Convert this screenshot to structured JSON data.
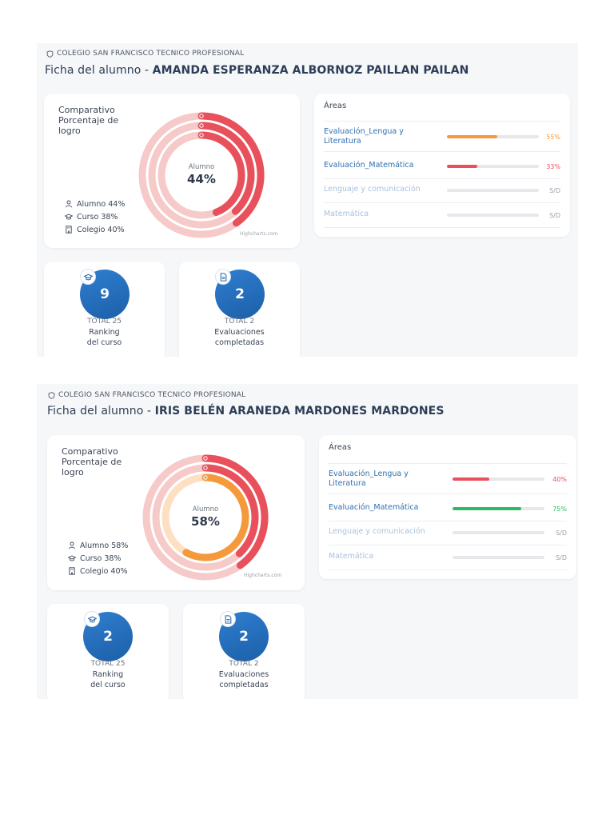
{
  "records": [
    {
      "school": "COLEGIO SAN FRANCISCO TECNICO PROFESIONAL",
      "title_prefix": "Ficha del alumno - ",
      "student_name": "AMANDA ESPERANZA ALBORNOZ PAILLAN PAILAN",
      "chart": {
        "heading": "Comparativo Porcentaje de logro",
        "center_label": "Alumno",
        "center_value": "44%",
        "legend": [
          {
            "label": "Alumno 44%",
            "icon": "person-icon"
          },
          {
            "label": "Curso 38%",
            "icon": "graduation-cap-icon"
          },
          {
            "label": "Colegio 40%",
            "icon": "building-icon"
          }
        ],
        "credit": "Highcharts.com"
      },
      "chart_data": {
        "type": "radial-bar",
        "title": "Comparativo Porcentaje de logro",
        "series": [
          {
            "name": "Colegio",
            "value": 40,
            "color": "#e8505b",
            "track": "#f7caca"
          },
          {
            "name": "Curso",
            "value": 38,
            "color": "#e8505b",
            "track": "#f7caca"
          },
          {
            "name": "Alumno",
            "value": 44,
            "color": "#e8505b",
            "track": "#f7caca"
          }
        ],
        "ylim": [
          0,
          100
        ]
      },
      "areas": {
        "title": "Áreas",
        "items": [
          {
            "name": "Evaluación_Lengua y Literatura",
            "value": "55%",
            "percent": 55,
            "color": "#f59a3c",
            "status": "active"
          },
          {
            "name": "Evaluación_Matemática",
            "value": "33%",
            "percent": 33,
            "color": "#e8505b",
            "status": "active"
          },
          {
            "name": "Lenguaje y comunicación",
            "value": "S/D",
            "percent": 0,
            "color": "#e6e8ec",
            "status": "muted"
          },
          {
            "name": "Matemática",
            "value": "S/D",
            "percent": 0,
            "color": "#e6e8ec",
            "status": "muted"
          }
        ]
      },
      "stats": [
        {
          "value": "9",
          "total": "TOTAL 25",
          "label_1": "Ranking",
          "label_2": "del curso",
          "icon": "graduation-cap-icon"
        },
        {
          "value": "2",
          "total": "TOTAL 2",
          "label_1": "Evaluaciones",
          "label_2": "completadas",
          "icon": "document-icon"
        }
      ]
    },
    {
      "school": "COLEGIO SAN FRANCISCO TECNICO PROFESIONAL",
      "title_prefix": "Ficha del alumno - ",
      "student_name": "IRIS BELÉN ARANEDA MARDONES MARDONES",
      "chart": {
        "heading": "Comparativo Porcentaje de logro",
        "center_label": "Alumno",
        "center_value": "58%",
        "legend": [
          {
            "label": "Alumno 58%",
            "icon": "person-icon"
          },
          {
            "label": "Curso 38%",
            "icon": "graduation-cap-icon"
          },
          {
            "label": "Colegio 40%",
            "icon": "building-icon"
          }
        ],
        "credit": "Highcharts.com"
      },
      "chart_data": {
        "type": "radial-bar",
        "title": "Comparativo Porcentaje de logro",
        "series": [
          {
            "name": "Colegio",
            "value": 40,
            "color": "#e8505b",
            "track": "#f7caca"
          },
          {
            "name": "Curso",
            "value": 38,
            "color": "#e8505b",
            "track": "#f7caca"
          },
          {
            "name": "Alumno",
            "value": 58,
            "color": "#f59a3c",
            "track": "#fde0c2"
          }
        ],
        "ylim": [
          0,
          100
        ]
      },
      "areas": {
        "title": "Áreas",
        "items": [
          {
            "name": "Evaluación_Lengua y Literatura",
            "value": "40%",
            "percent": 40,
            "color": "#e8505b",
            "status": "active"
          },
          {
            "name": "Evaluación_Matemática",
            "value": "75%",
            "percent": 75,
            "color": "#2fb866",
            "status": "active"
          },
          {
            "name": "Lenguaje y comunicación",
            "value": "S/D",
            "percent": 0,
            "color": "#e6e8ec",
            "status": "muted"
          },
          {
            "name": "Matemática",
            "value": "S/D",
            "percent": 0,
            "color": "#e6e8ec",
            "status": "muted"
          }
        ]
      },
      "stats": [
        {
          "value": "2",
          "total": "TOTAL 25",
          "label_1": "Ranking",
          "label_2": "del curso",
          "icon": "graduation-cap-icon"
        },
        {
          "value": "2",
          "total": "TOTAL 2",
          "label_1": "Evaluaciones",
          "label_2": "completadas",
          "icon": "document-icon"
        }
      ]
    }
  ]
}
